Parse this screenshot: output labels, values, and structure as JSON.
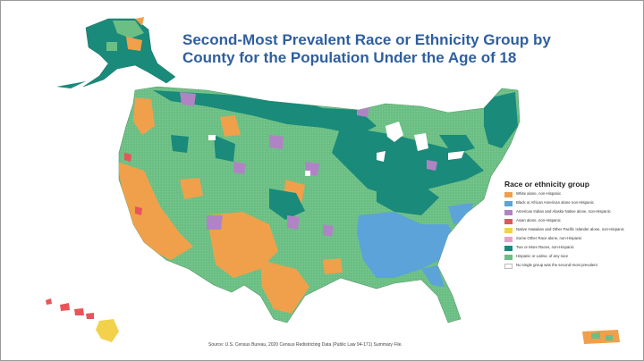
{
  "title": {
    "line1": "Second-Most Prevalent Race or Ethnicity Group by",
    "line2": "County for the Population Under the Age of 18"
  },
  "legend": {
    "title": "Race or ethnicity group",
    "items": [
      {
        "label": "White alone, non-Hispanic",
        "color": "#f0a04b"
      },
      {
        "label": "Black or African American alone non-Hispanic",
        "color": "#5ba3d9"
      },
      {
        "label": "American Indian and Alaska Native alone, non-Hispanic",
        "color": "#b084c4"
      },
      {
        "label": "Asian alone, non-Hispanic",
        "color": "#e8545a"
      },
      {
        "label": "Native Hawaiian and Other Pacific Islander alone, non-Hispanic",
        "color": "#f2d24b"
      },
      {
        "label": "Some Other Race alone, non-Hispanic",
        "color": "#e8a0c8"
      },
      {
        "label": "Two or More Races, non-Hispanic",
        "color": "#1a8a7a"
      },
      {
        "label": "Hispanic or Latino, of any race",
        "color": "#6cbf84"
      },
      {
        "label": "No single group was the second-most prevalent",
        "color": "#ffffff"
      }
    ]
  },
  "source": "Source: U.S. Census Bureau, 2020 Census Redistricting Data (Public Law 94-171) Summary File.",
  "colors": {
    "white": "#f0a04b",
    "black": "#5ba3d9",
    "aian": "#b084c4",
    "asian": "#e8545a",
    "nhpi": "#f2d24b",
    "other": "#e8a0c8",
    "multi": "#1a8a7a",
    "hispanic": "#6cbf84",
    "title": "#2f5f9e"
  }
}
